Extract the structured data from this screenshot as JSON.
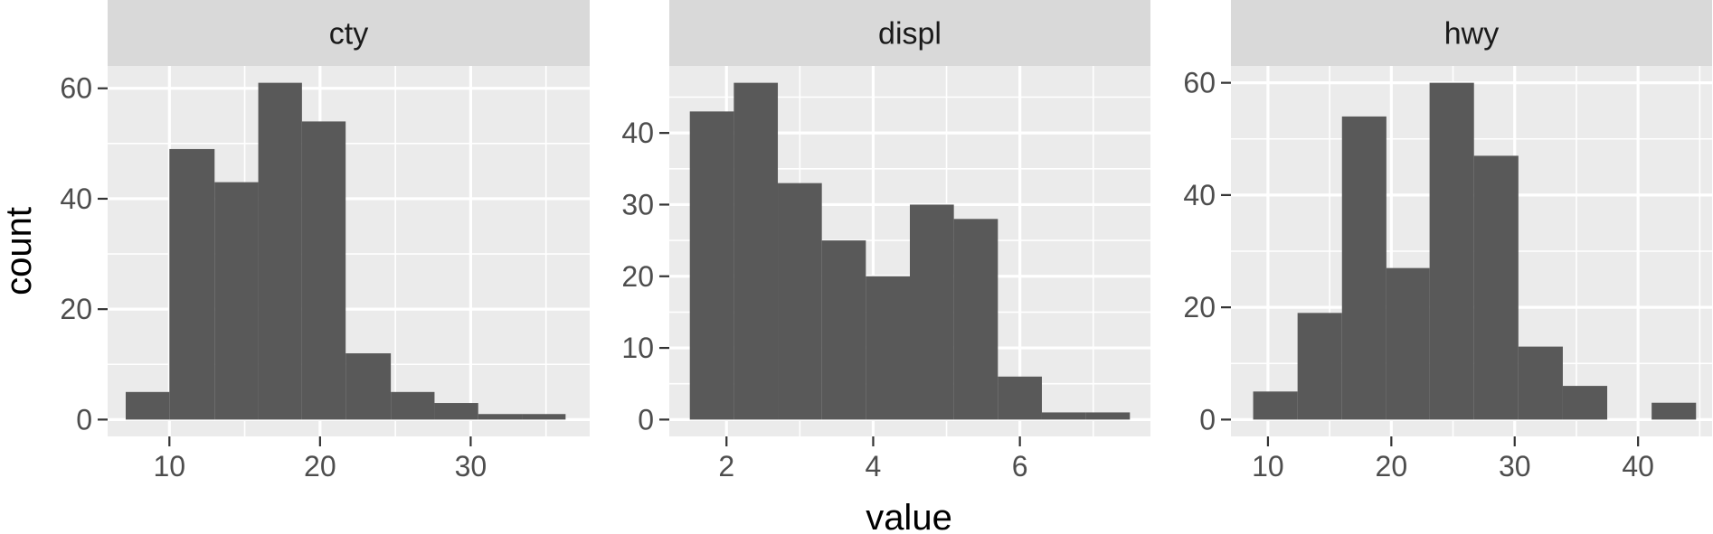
{
  "chart_data": {
    "type": "bar",
    "kind": "faceted-histogram",
    "xlabel": "value",
    "ylabel": "count",
    "colors": {
      "panel_background": "#EBEBEB",
      "strip_background": "#D9D9D9",
      "grid": "#FFFFFF",
      "bar_fill": "#595959",
      "tick": "#333333"
    },
    "facets": [
      {
        "label": "cty",
        "xlim": [
          5.9,
          37.9
        ],
        "ylim": [
          -3.05,
          64.05
        ],
        "xticks": [
          10,
          20,
          30
        ],
        "yticks": [
          0,
          20,
          40,
          60
        ],
        "bins": [
          {
            "x0": 7.1,
            "x1": 10.0,
            "count": 5
          },
          {
            "x0": 10.0,
            "x1": 13.0,
            "count": 49
          },
          {
            "x0": 13.0,
            "x1": 15.9,
            "count": 43
          },
          {
            "x0": 15.9,
            "x1": 18.8,
            "count": 61
          },
          {
            "x0": 18.8,
            "x1": 21.7,
            "count": 54
          },
          {
            "x0": 21.7,
            "x1": 24.7,
            "count": 12
          },
          {
            "x0": 24.7,
            "x1": 27.6,
            "count": 5
          },
          {
            "x0": 27.6,
            "x1": 30.5,
            "count": 3
          },
          {
            "x0": 30.5,
            "x1": 33.4,
            "count": 1
          },
          {
            "x0": 33.4,
            "x1": 36.3,
            "count": 1
          }
        ]
      },
      {
        "label": "displ",
        "xlim": [
          1.22,
          7.78
        ],
        "ylim": [
          -2.35,
          49.35
        ],
        "xticks": [
          2,
          4,
          6
        ],
        "yticks": [
          0,
          10,
          20,
          30,
          40
        ],
        "bins": [
          {
            "x0": 1.5,
            "x1": 2.1,
            "count": 43
          },
          {
            "x0": 2.1,
            "x1": 2.7,
            "count": 47
          },
          {
            "x0": 2.7,
            "x1": 3.3,
            "count": 33
          },
          {
            "x0": 3.3,
            "x1": 3.9,
            "count": 25
          },
          {
            "x0": 3.9,
            "x1": 4.5,
            "count": 20
          },
          {
            "x0": 4.5,
            "x1": 5.1,
            "count": 30
          },
          {
            "x0": 5.1,
            "x1": 5.7,
            "count": 28
          },
          {
            "x0": 5.7,
            "x1": 6.3,
            "count": 6
          },
          {
            "x0": 6.3,
            "x1": 6.9,
            "count": 1
          },
          {
            "x0": 6.9,
            "x1": 7.5,
            "count": 1
          }
        ]
      },
      {
        "label": "hwy",
        "xlim": [
          7.0,
          46.0
        ],
        "ylim": [
          -3.0,
          63.0
        ],
        "xticks": [
          10,
          20,
          30,
          40
        ],
        "yticks": [
          0,
          20,
          40,
          60
        ],
        "bins": [
          {
            "x0": 8.8,
            "x1": 12.4,
            "count": 5
          },
          {
            "x0": 12.4,
            "x1": 16.0,
            "count": 19
          },
          {
            "x0": 16.0,
            "x1": 19.6,
            "count": 54
          },
          {
            "x0": 19.6,
            "x1": 23.1,
            "count": 27
          },
          {
            "x0": 23.1,
            "x1": 26.7,
            "count": 60
          },
          {
            "x0": 26.7,
            "x1": 30.3,
            "count": 47
          },
          {
            "x0": 30.3,
            "x1": 33.9,
            "count": 13
          },
          {
            "x0": 33.9,
            "x1": 37.5,
            "count": 6
          },
          {
            "x0": 37.5,
            "x1": 41.1,
            "count": 0
          },
          {
            "x0": 41.1,
            "x1": 44.7,
            "count": 3
          }
        ]
      }
    ]
  }
}
